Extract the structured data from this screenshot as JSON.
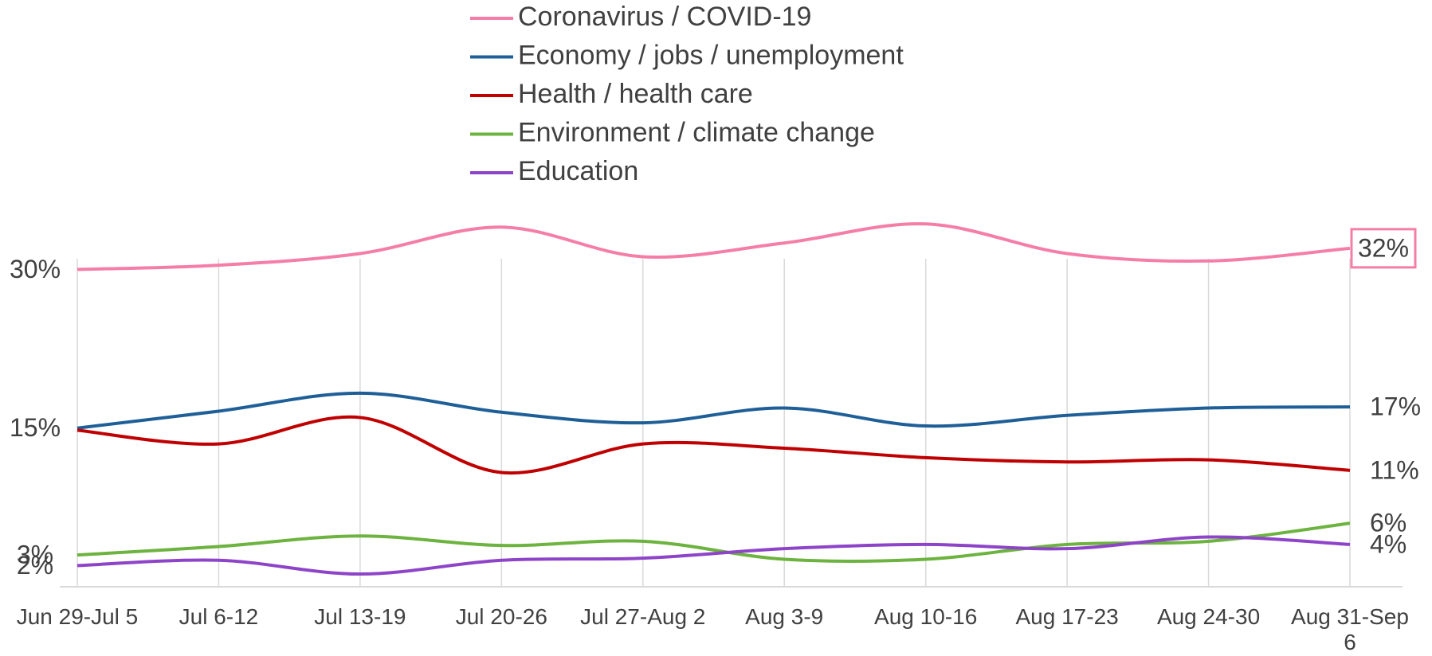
{
  "chart_data": {
    "type": "line",
    "categories": [
      "Jun 29-Jul 5",
      "Jul 6-12",
      "Jul 13-19",
      "Jul 20-26",
      "Jul 27-Aug 2",
      "Aug 3-9",
      "Aug 10-16",
      "Aug 17-23",
      "Aug 24-30",
      "Aug 31-Sep 6"
    ],
    "ylim": [
      0,
      35
    ],
    "grid": true,
    "smooth": true,
    "series": [
      {
        "name": "Coronavirus / COVID-19",
        "color": "#f57ea8",
        "values": [
          30,
          30.4,
          31.5,
          34,
          31.2,
          32.5,
          34.3,
          31.5,
          30.8,
          32
        ],
        "value_labels": [
          "30%",
          null,
          null,
          null,
          null,
          null,
          null,
          null,
          null,
          "32%"
        ]
      },
      {
        "name": "Economy / jobs / unemployment",
        "color": "#1f5f98",
        "values": [
          15,
          16.6,
          18.3,
          16.5,
          15.5,
          16.9,
          15.2,
          16.2,
          16.9,
          17
        ],
        "value_labels": [
          "15%",
          null,
          null,
          null,
          null,
          null,
          null,
          null,
          null,
          "17%"
        ]
      },
      {
        "name": "Health / health care",
        "color": "#c00000",
        "values": [
          14.8,
          13.5,
          16,
          10.8,
          13.5,
          13.1,
          12.2,
          11.8,
          12,
          11
        ],
        "value_labels": [
          null,
          null,
          null,
          null,
          null,
          null,
          null,
          null,
          null,
          "11%"
        ]
      },
      {
        "name": "Environment / climate change",
        "color": "#6db33f",
        "values": [
          3,
          3.8,
          4.8,
          3.9,
          4.3,
          2.6,
          2.6,
          4,
          4.3,
          6
        ],
        "value_labels": [
          "3%",
          null,
          null,
          null,
          null,
          null,
          null,
          null,
          null,
          "6%"
        ]
      },
      {
        "name": "Education",
        "color": "#8e44c8",
        "values": [
          2,
          2.5,
          1.2,
          2.5,
          2.7,
          3.6,
          4,
          3.6,
          4.7,
          4
        ],
        "value_labels": [
          "2%",
          null,
          null,
          null,
          null,
          null,
          null,
          null,
          null,
          "4%"
        ]
      }
    ]
  }
}
